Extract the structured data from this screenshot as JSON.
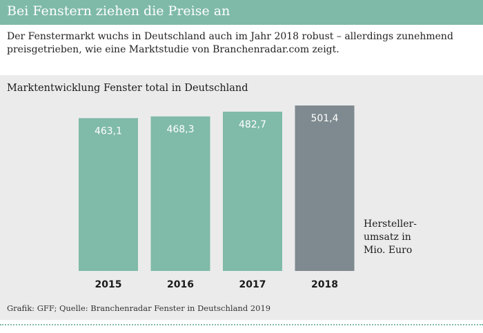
{
  "header": {
    "title": "Bei Fenstern ziehen die Preise an"
  },
  "intro": {
    "text": "Der Fenstermarkt wuchs in Deutschland auch im Jahr 2018 robust – allerdings zunehmend preisgetrieben, wie eine Marktstudie von Branchenradar.com zeigt."
  },
  "chart_data": {
    "type": "bar",
    "title": "Marktentwicklung Fenster total in Deutschland",
    "categories": [
      "2015",
      "2016",
      "2017",
      "2018"
    ],
    "values": [
      463.1,
      468.3,
      482.7,
      501.4
    ],
    "value_labels": [
      "463,1",
      "468,3",
      "482,7",
      "501,4"
    ],
    "ylabel": "Hersteller-umsatz in Mio. Euro",
    "ylim": [
      0,
      501.4
    ],
    "grid": false,
    "colors": [
      "#80baa9",
      "#80baa9",
      "#80baa9",
      "#7e8a8f"
    ],
    "label_color": "#ffffff"
  },
  "unit_label": {
    "line1": "Hersteller-",
    "line2": "umsatz in",
    "line3": "Mio. Euro"
  },
  "source": {
    "text": "Grafik: GFF; Quelle: Branchenradar Fenster in Deutschland 2019"
  }
}
